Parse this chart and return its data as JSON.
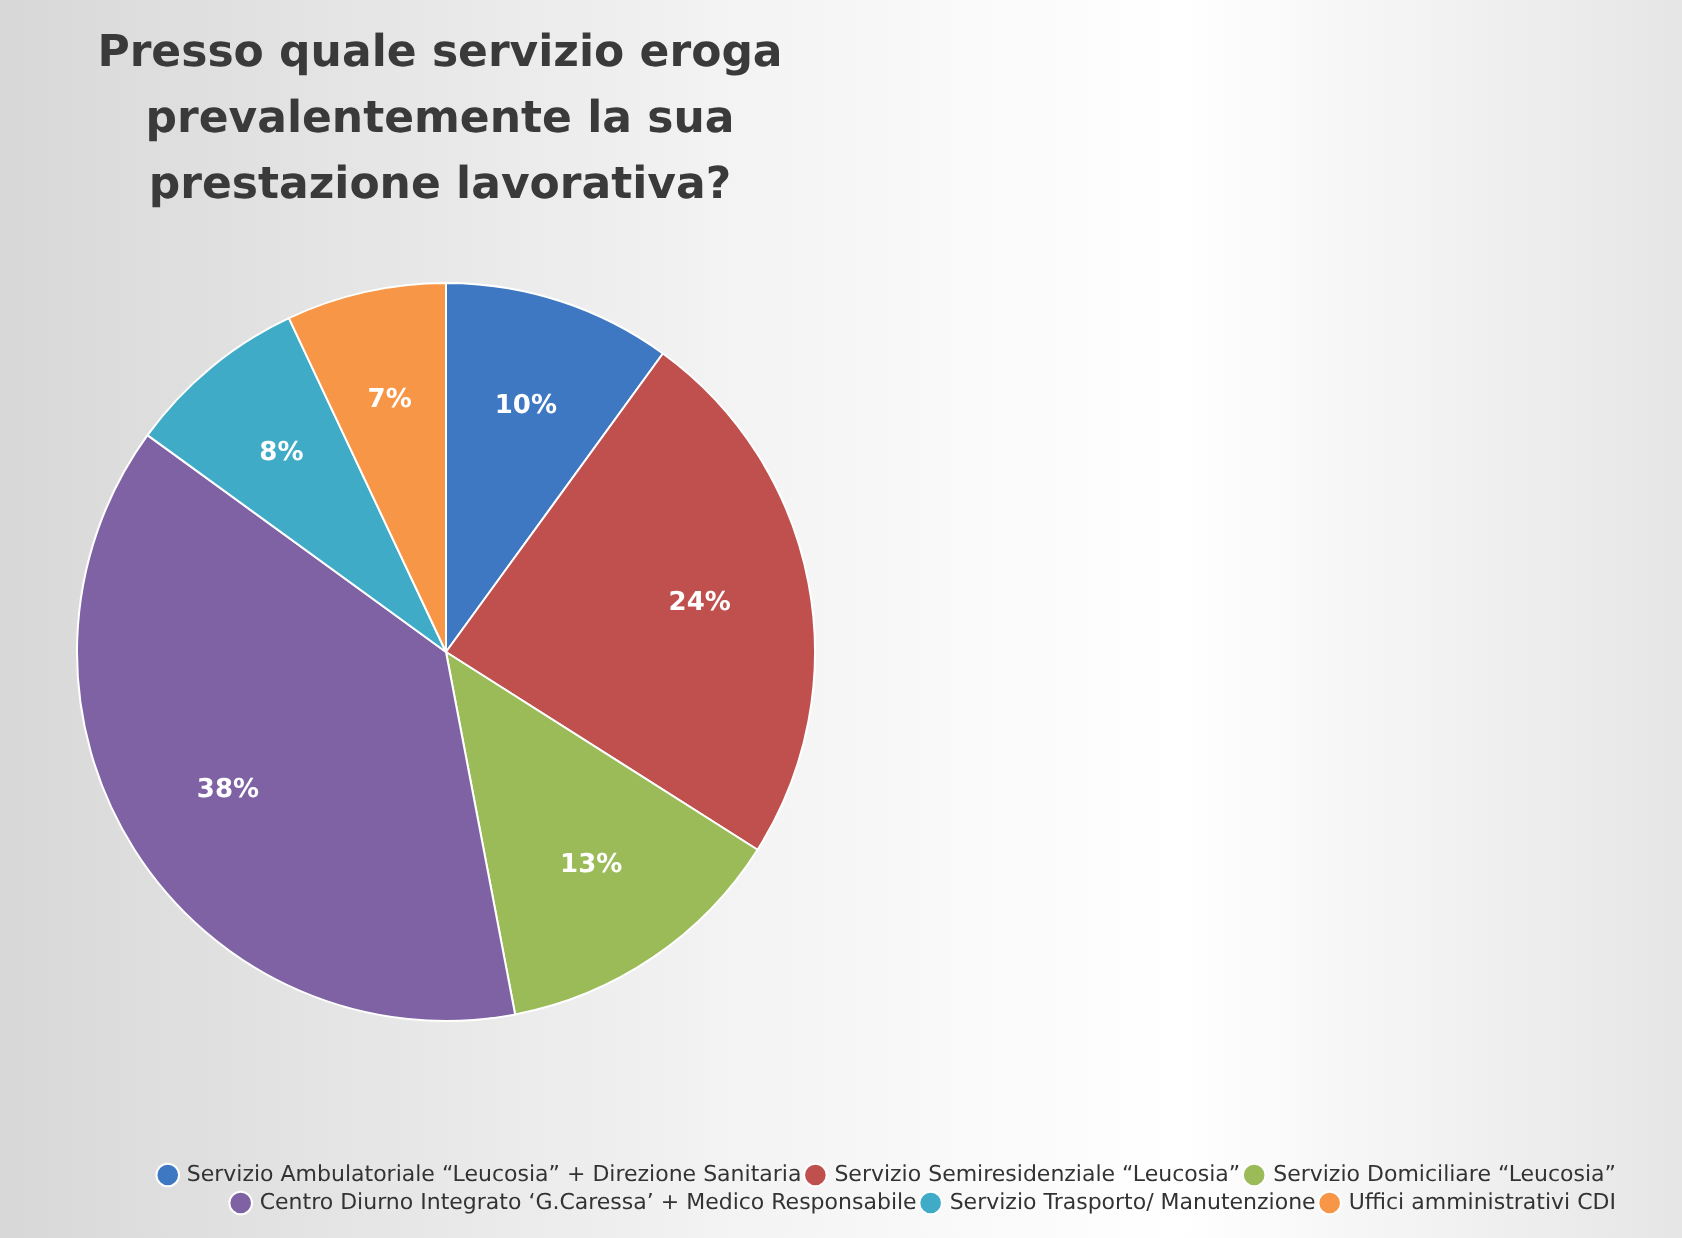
{
  "chart_data": {
    "type": "pie",
    "title": "Presso quale servizio eroga prevalentemente la sua prestazione lavorativa?",
    "categories": [
      "Servizio Ambulatoriale “Leucosia” + Direzione Sanitaria",
      "Servizio Semiresidenziale “Leucosia”",
      "Servizio Domiciliare “Leucosia”",
      "Centro Diurno Integrato ‘G.Caressa’ + Medico Responsabile",
      "Servizio Trasporto/ Manutenzione",
      "Uffici amministrativi CDI"
    ],
    "values": [
      10,
      24,
      13,
      38,
      8,
      7
    ],
    "colors": [
      "#3f78c2",
      "#c0504d",
      "#9bbb59",
      "#7e62a4",
      "#3fabc6",
      "#f79646"
    ],
    "value_labels": [
      "10%",
      "24%",
      "13%",
      "38%",
      "8%",
      "7%"
    ],
    "legend": "bottom right"
  }
}
